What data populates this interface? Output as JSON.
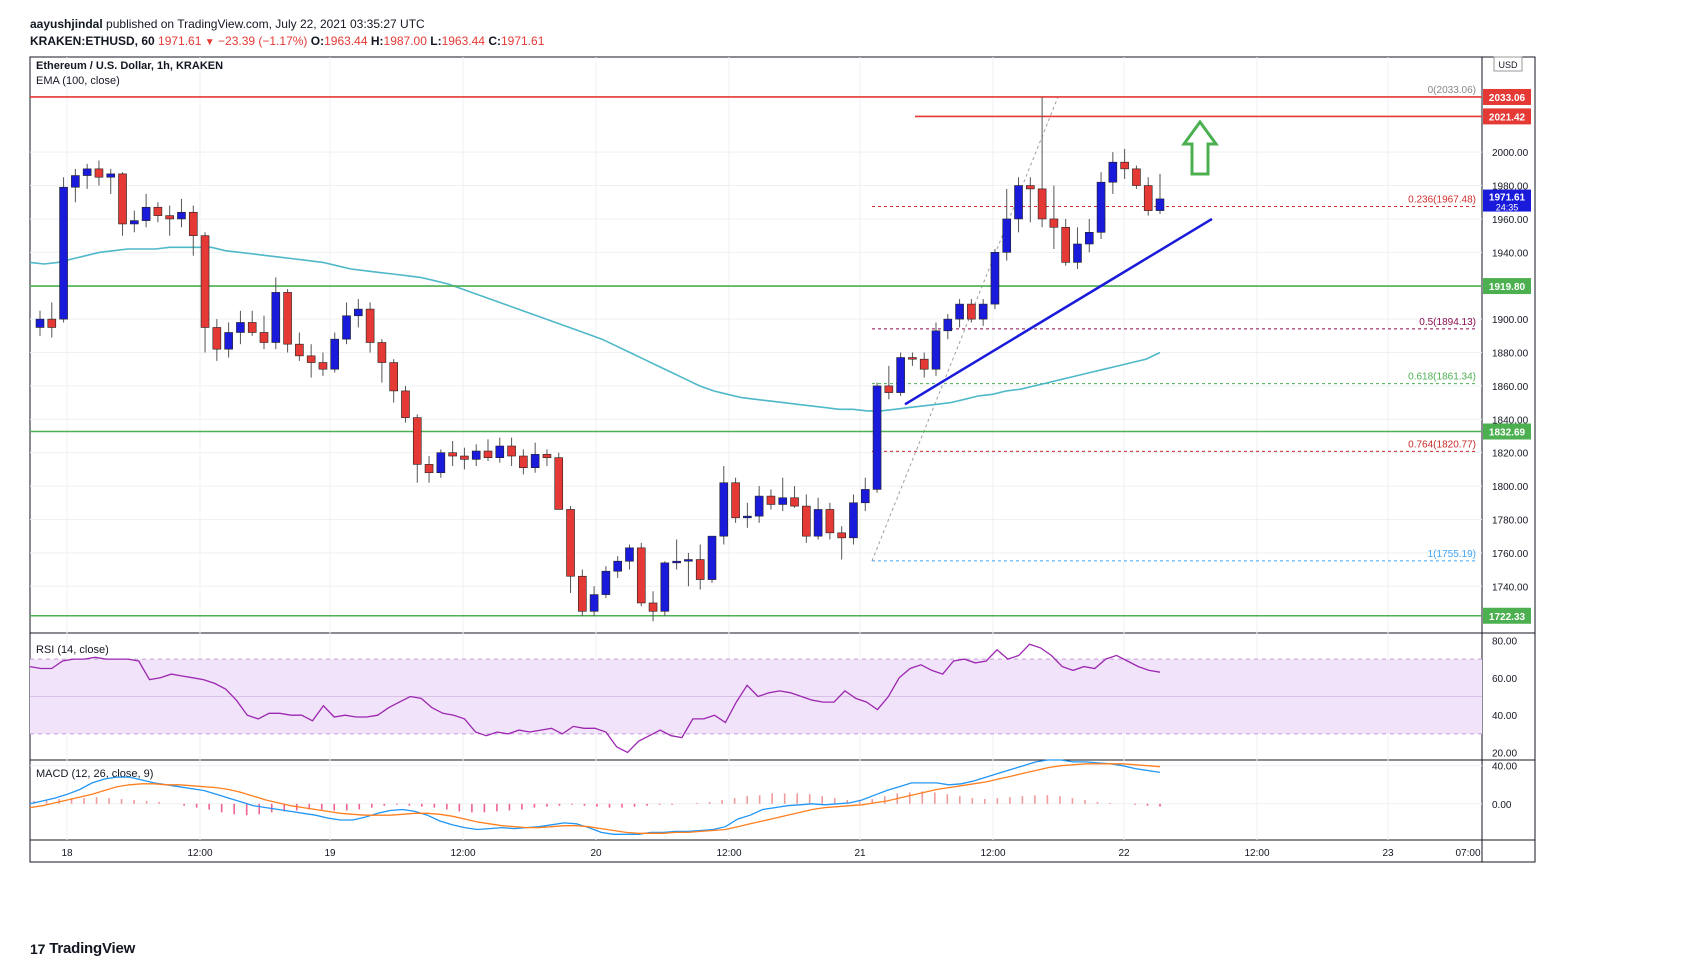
{
  "header": {
    "author": "aayushjindal",
    "published_text": "published on TradingView.com, July 22, 2021 03:35:27 UTC",
    "symbol": "KRAKEN:ETHUSD, 60",
    "last": "1971.61",
    "change": "−23.39 (−1.17%)",
    "o_label": "O:",
    "o_value": "1963.44",
    "h_label": "H:",
    "h_value": "1987.00",
    "l_label": "L:",
    "l_value": "1963.44",
    "c_label": "C:",
    "c_value": "1971.61"
  },
  "logo": {
    "text": "TradingView"
  },
  "colors": {
    "up": "#1a1adb",
    "down": "#e53935",
    "ema": "#4fb8c9",
    "rsi": "#9c27b0",
    "macd": "#2196f3",
    "signal": "#ff7f1f",
    "support": "#4caf50",
    "resistance": "#e53935",
    "trend": "#1a1adb",
    "arrow": "#4caf50"
  },
  "chart_data": [
    {
      "type": "candlestick",
      "title": "Ethereum / U.S. Dollar, 1h, KRAKEN",
      "indicator_label": "EMA (100, close)",
      "currency": "USD",
      "x_tick_labels": [
        "18",
        "12:00",
        "19",
        "12:00",
        "20",
        "12:00",
        "21",
        "12:00",
        "22",
        "12:00",
        "23",
        "07:00"
      ],
      "y_ticks": [
        1740,
        1760,
        1780,
        1800,
        1820,
        1840,
        1860,
        1880,
        1900,
        1920,
        1940,
        1960,
        1980,
        2000
      ],
      "ylim": [
        1712,
        2057
      ],
      "candles_ohlc": [
        [
          1895,
          1905,
          1890,
          1900
        ],
        [
          1900,
          1910,
          1889,
          1895
        ],
        [
          1900,
          1985,
          1898,
          1979
        ],
        [
          1979,
          1990,
          1970,
          1986
        ],
        [
          1986,
          1993,
          1978,
          1990
        ],
        [
          1990,
          1995,
          1980,
          1985
        ],
        [
          1985,
          1990,
          1975,
          1987
        ],
        [
          1987,
          1988,
          1950,
          1957
        ],
        [
          1957,
          1965,
          1952,
          1959
        ],
        [
          1959,
          1975,
          1955,
          1967
        ],
        [
          1967,
          1970,
          1958,
          1962
        ],
        [
          1962,
          1968,
          1950,
          1960
        ],
        [
          1960,
          1972,
          1955,
          1964
        ],
        [
          1964,
          1968,
          1938,
          1950
        ],
        [
          1950,
          1952,
          1880,
          1895
        ],
        [
          1895,
          1900,
          1875,
          1882
        ],
        [
          1882,
          1898,
          1877,
          1892
        ],
        [
          1892,
          1905,
          1885,
          1898
        ],
        [
          1898,
          1905,
          1890,
          1892
        ],
        [
          1892,
          1902,
          1882,
          1886
        ],
        [
          1886,
          1925,
          1882,
          1916
        ],
        [
          1916,
          1918,
          1880,
          1885
        ],
        [
          1885,
          1892,
          1875,
          1878
        ],
        [
          1878,
          1885,
          1865,
          1874
        ],
        [
          1874,
          1880,
          1866,
          1870
        ],
        [
          1870,
          1892,
          1868,
          1888
        ],
        [
          1888,
          1910,
          1885,
          1902
        ],
        [
          1902,
          1912,
          1895,
          1906
        ],
        [
          1906,
          1910,
          1880,
          1886
        ],
        [
          1886,
          1888,
          1862,
          1874
        ],
        [
          1874,
          1876,
          1850,
          1857
        ],
        [
          1857,
          1860,
          1838,
          1841
        ],
        [
          1841,
          1843,
          1802,
          1813
        ],
        [
          1813,
          1818,
          1802,
          1808
        ],
        [
          1808,
          1822,
          1805,
          1820
        ],
        [
          1820,
          1827,
          1812,
          1818
        ],
        [
          1818,
          1823,
          1810,
          1816
        ],
        [
          1816,
          1825,
          1812,
          1821
        ],
        [
          1821,
          1828,
          1815,
          1817
        ],
        [
          1817,
          1829,
          1814,
          1824
        ],
        [
          1824,
          1829,
          1812,
          1818
        ],
        [
          1818,
          1822,
          1807,
          1811
        ],
        [
          1811,
          1826,
          1808,
          1819
        ],
        [
          1819,
          1822,
          1812,
          1817
        ],
        [
          1817,
          1820,
          1788,
          1786
        ],
        [
          1786,
          1788,
          1736,
          1746
        ],
        [
          1746,
          1750,
          1722,
          1725
        ],
        [
          1725,
          1740,
          1722,
          1735
        ],
        [
          1735,
          1752,
          1733,
          1749
        ],
        [
          1749,
          1758,
          1745,
          1755
        ],
        [
          1755,
          1765,
          1750,
          1763
        ],
        [
          1763,
          1766,
          1728,
          1730
        ],
        [
          1730,
          1737,
          1719,
          1725
        ],
        [
          1725,
          1755,
          1722,
          1754
        ],
        [
          1754,
          1768,
          1750,
          1755
        ],
        [
          1755,
          1760,
          1740,
          1756
        ],
        [
          1756,
          1765,
          1738,
          1744
        ],
        [
          1744,
          1770,
          1742,
          1770
        ],
        [
          1770,
          1812,
          1765,
          1802
        ],
        [
          1802,
          1805,
          1778,
          1781
        ],
        [
          1781,
          1790,
          1775,
          1782
        ],
        [
          1782,
          1800,
          1778,
          1794
        ],
        [
          1794,
          1798,
          1786,
          1789
        ],
        [
          1789,
          1805,
          1785,
          1793
        ],
        [
          1793,
          1800,
          1787,
          1788
        ],
        [
          1788,
          1795,
          1766,
          1770
        ],
        [
          1770,
          1793,
          1768,
          1786
        ],
        [
          1786,
          1790,
          1768,
          1772
        ],
        [
          1772,
          1776,
          1756,
          1769
        ],
        [
          1769,
          1795,
          1765,
          1790
        ],
        [
          1790,
          1805,
          1785,
          1798
        ],
        [
          1798,
          1862,
          1796,
          1860
        ],
        [
          1860,
          1872,
          1852,
          1856
        ],
        [
          1856,
          1880,
          1854,
          1877
        ],
        [
          1877,
          1880,
          1872,
          1876
        ],
        [
          1876,
          1880,
          1865,
          1870
        ],
        [
          1870,
          1898,
          1866,
          1893
        ],
        [
          1893,
          1903,
          1888,
          1900
        ],
        [
          1900,
          1912,
          1895,
          1909
        ],
        [
          1909,
          1912,
          1898,
          1900
        ],
        [
          1900,
          1912,
          1896,
          1909
        ],
        [
          1909,
          1942,
          1906,
          1940
        ],
        [
          1940,
          1978,
          1935,
          1960
        ],
        [
          1960,
          1985,
          1952,
          1980
        ],
        [
          1980,
          1985,
          1958,
          1978
        ],
        [
          1978,
          2033,
          1955,
          1960
        ],
        [
          1960,
          1980,
          1942,
          1955
        ],
        [
          1955,
          1960,
          1932,
          1934
        ],
        [
          1934,
          1955,
          1930,
          1945
        ],
        [
          1945,
          1960,
          1940,
          1952
        ],
        [
          1952,
          1988,
          1948,
          1982
        ],
        [
          1982,
          2000,
          1975,
          1994
        ],
        [
          1994,
          2002,
          1984,
          1990
        ],
        [
          1990,
          1992,
          1978,
          1980
        ],
        [
          1980,
          1985,
          1962,
          1965
        ],
        [
          1965,
          1987,
          1963,
          1972
        ]
      ],
      "ema_100": [
        1934,
        1933,
        1934,
        1936,
        1938,
        1940,
        1941,
        1942,
        1942,
        1942,
        1943,
        1943,
        1943,
        1943,
        1941,
        1940,
        1939,
        1938,
        1937,
        1936,
        1935,
        1934,
        1932,
        1930,
        1929,
        1928,
        1927,
        1926,
        1925,
        1923,
        1921,
        1918,
        1915,
        1912,
        1909,
        1906,
        1903,
        1900,
        1897,
        1894,
        1891,
        1888,
        1884,
        1880,
        1876,
        1872,
        1868,
        1864,
        1860,
        1857,
        1855,
        1853,
        1852,
        1851,
        1850,
        1849,
        1848,
        1847,
        1846,
        1846,
        1845,
        1845,
        1846,
        1847,
        1848,
        1849,
        1850,
        1852,
        1854,
        1855,
        1857,
        1858,
        1860,
        1862,
        1864,
        1866,
        1868,
        1870,
        1872,
        1874,
        1876,
        1880
      ],
      "levels": [
        {
          "label": "2033.06",
          "value": 2033.06
        },
        {
          "label": "2021.42",
          "value": 2021.42
        },
        {
          "label": "1919.80",
          "value": 1919.8
        },
        {
          "label": "1832.69",
          "value": 1832.69
        },
        {
          "label": "1722.33",
          "value": 1722.33
        }
      ],
      "fib_levels": [
        {
          "label": "0(2033.06)",
          "value": 2033.06
        },
        {
          "label": "0.236(1967.48)",
          "value": 1967.48
        },
        {
          "label": "0.5(1894.13)",
          "value": 1894.13
        },
        {
          "label": "0.618(1861.34)",
          "value": 1861.34
        },
        {
          "label": "0.764(1820.77)",
          "value": 1820.77
        },
        {
          "label": "1(1755.19)",
          "value": 1755.19
        }
      ],
      "price_label": {
        "value": "1971.61",
        "countdown": "24:35"
      },
      "trendline": {
        "from": [
          1849,
          1849
        ],
        "to_value": 1960
      }
    },
    {
      "type": "line",
      "title": "RSI (14, close)",
      "y_ticks": [
        20,
        40,
        60,
        80
      ],
      "ylim": [
        16,
        84
      ],
      "band": [
        30,
        70
      ],
      "values": [
        66,
        65,
        65,
        69,
        70,
        70,
        71,
        70,
        70,
        70,
        69,
        59,
        60,
        62,
        61,
        60,
        59,
        57,
        54,
        48,
        40,
        38,
        41,
        41,
        40,
        40,
        37,
        45,
        39,
        40,
        39,
        39,
        40,
        44,
        47,
        50,
        49,
        44,
        41,
        40,
        38,
        31,
        29,
        31,
        30,
        32,
        31,
        32,
        33,
        30,
        34,
        33,
        33,
        31,
        23,
        20,
        26,
        29,
        32,
        29,
        28,
        38,
        38,
        40,
        36,
        47,
        56,
        50,
        52,
        53,
        52,
        50,
        48,
        47,
        47,
        53,
        49,
        47,
        43,
        50,
        60,
        65,
        67,
        64,
        62,
        69,
        70,
        68,
        69,
        75,
        70,
        72,
        78,
        76,
        72,
        66,
        64,
        66,
        65,
        70,
        72,
        69,
        66,
        64,
        63
      ]
    },
    {
      "type": "line",
      "title": "MACD (12, 26, close, 9)",
      "y_ticks": [
        0,
        40
      ],
      "ylim": [
        -38,
        46
      ],
      "series": [
        {
          "name": "MACD",
          "values": [
            0,
            3,
            6,
            10,
            15,
            22,
            26,
            28,
            28,
            25,
            22,
            20,
            18,
            16,
            14,
            10,
            6,
            2,
            -2,
            -4,
            -6,
            -8,
            -10,
            -12,
            -15,
            -17,
            -17,
            -14,
            -10,
            -7,
            -6,
            -8,
            -12,
            -18,
            -22,
            -25,
            -27,
            -26,
            -25,
            -26,
            -25,
            -24,
            -22,
            -20,
            -21,
            -25,
            -30,
            -32,
            -32,
            -32,
            -30,
            -30,
            -29,
            -29,
            -28,
            -27,
            -24,
            -16,
            -12,
            -6,
            -4,
            -2,
            -1,
            0,
            -1,
            0,
            1,
            4,
            9,
            14,
            18,
            22,
            22,
            22,
            20,
            21,
            24,
            28,
            32,
            36,
            40,
            44,
            46,
            46,
            44,
            44,
            43,
            42,
            40,
            37,
            35,
            33
          ]
        },
        {
          "name": "Signal",
          "values": [
            -4,
            -2,
            1,
            4,
            7,
            10,
            14,
            18,
            20,
            21,
            21,
            20,
            20,
            19,
            18,
            17,
            15,
            12,
            8,
            4,
            1,
            -2,
            -4,
            -6,
            -8,
            -10,
            -11,
            -12,
            -12,
            -12,
            -11,
            -10,
            -10,
            -11,
            -13,
            -16,
            -19,
            -21,
            -23,
            -24,
            -25,
            -25,
            -24,
            -23,
            -23,
            -24,
            -26,
            -28,
            -30,
            -31,
            -31,
            -31,
            -30,
            -30,
            -29,
            -28,
            -27,
            -24,
            -21,
            -18,
            -15,
            -12,
            -9,
            -6,
            -4,
            -3,
            -2,
            -1,
            1,
            3,
            6,
            9,
            12,
            15,
            17,
            19,
            21,
            23,
            26,
            29,
            32,
            35,
            38,
            40,
            41,
            42,
            42,
            42,
            42,
            41,
            40,
            39
          ]
        }
      ],
      "histogram": [
        3,
        4,
        5,
        6,
        6,
        7,
        6,
        5,
        4,
        3,
        2,
        0,
        -2,
        -4,
        -6,
        -9,
        -11,
        -12,
        -11,
        -9,
        -8,
        -7,
        -6,
        -6,
        -7,
        -7,
        -6,
        -4,
        -2,
        -1,
        -2,
        -3,
        -4,
        -6,
        -8,
        -9,
        -9,
        -8,
        -7,
        -6,
        -4,
        -3,
        -2,
        -1,
        -2,
        -3,
        -4,
        -4,
        -3,
        -2,
        -1,
        -1,
        0,
        1,
        2,
        4,
        6,
        8,
        9,
        11,
        11,
        11,
        10,
        8,
        6,
        4,
        3,
        5,
        8,
        11,
        12,
        13,
        12,
        10,
        8,
        6,
        5,
        6,
        7,
        8,
        9,
        9,
        8,
        6,
        4,
        2,
        1,
        0,
        -1,
        -2,
        -3
      ]
    }
  ]
}
